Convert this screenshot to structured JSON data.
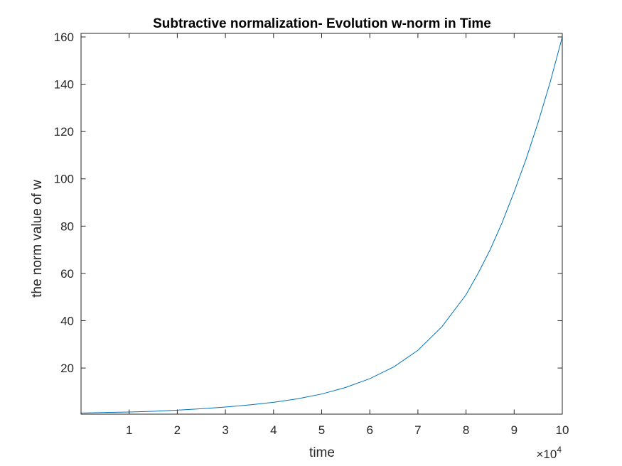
{
  "chart_data": {
    "type": "line",
    "title": "Subtractive normalization- Evolution w-norm in Time",
    "xlabel": "time",
    "ylabel": "the norm value of w",
    "x_exponent": {
      "base": "×10",
      "power": "4"
    },
    "xlim": [
      0,
      10
    ],
    "ylim": [
      0.5,
      161.5
    ],
    "xticks": [
      1,
      2,
      3,
      4,
      5,
      6,
      7,
      8,
      9,
      10
    ],
    "yticks": [
      20,
      40,
      60,
      80,
      100,
      120,
      140,
      160
    ],
    "grid": false,
    "box": true,
    "series": [
      {
        "color": "#0072BD",
        "x": [
          0,
          0.5,
          1,
          1.5,
          2,
          2.5,
          3,
          3.5,
          4,
          4.5,
          5,
          5.5,
          6,
          6.5,
          7,
          7.5,
          8,
          8.25,
          8.5,
          8.75,
          9,
          9.25,
          9.5,
          9.75,
          10
        ],
        "y": [
          1.0,
          1.2,
          1.4,
          1.7,
          2.2,
          2.8,
          3.5,
          4.4,
          5.5,
          7.0,
          9.0,
          11.8,
          15.5,
          20.5,
          27.5,
          37.5,
          51.0,
          60.0,
          70.0,
          81.5,
          94.5,
          108.5,
          124.0,
          141.0,
          160.0
        ]
      }
    ]
  }
}
